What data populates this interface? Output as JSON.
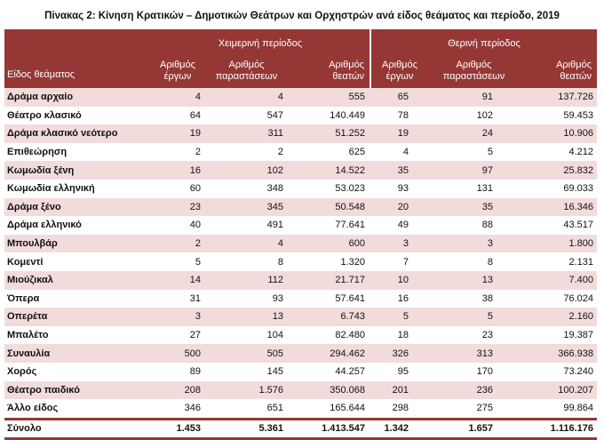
{
  "title": "Πίνακας 2: Κίνηση Κρατικών – Δημοτικών Θεάτρων και Ορχηστρών ανά είδος θεάματος και περίοδο, 2019",
  "header": {
    "category": "Είδος θεάματος",
    "groups": [
      "Χειμερινή περίοδος",
      "Θερινή περίοδος"
    ],
    "columns": [
      [
        "Αριθμός",
        "έργων"
      ],
      [
        "Αριθμός",
        "παραστάσεων"
      ],
      [
        "Αριθμός",
        "θεατών"
      ],
      [
        "Αριθμός",
        "έργων"
      ],
      [
        "Αριθμός",
        "παραστάσεων"
      ],
      [
        "Αριθμός",
        "θεατών"
      ]
    ]
  },
  "colors": {
    "header": "#953735",
    "shade": "#f2dcdb"
  },
  "rows": [
    [
      "Δράμα  αρχαίο",
      "4",
      "4",
      "555",
      "65",
      "91",
      "137.726"
    ],
    [
      "Θέατρο κλασικό",
      "64",
      "547",
      "140.449",
      "78",
      "102",
      "59.453"
    ],
    [
      "Δράμα κλασικό νεότερο",
      "19",
      "311",
      "51.252",
      "19",
      "24",
      "10.906"
    ],
    [
      "Επιθεώρηση",
      "2",
      "2",
      "625",
      "4",
      "5",
      "4.212"
    ],
    [
      "Κωμωδία ξένη",
      "16",
      "102",
      "14.522",
      "35",
      "97",
      "25.832"
    ],
    [
      "Κωμωδία ελληνική",
      "60",
      "348",
      "53.023",
      "93",
      "131",
      "69.033"
    ],
    [
      "Δράμα ξένο",
      "23",
      "345",
      "50.548",
      "20",
      "35",
      "16.346"
    ],
    [
      "Δράμα ελληνικό",
      "40",
      "491",
      "77.641",
      "49",
      "88",
      "43.517"
    ],
    [
      "Μπουλβάρ",
      "2",
      "4",
      "600",
      "3",
      "3",
      "1.800"
    ],
    [
      "Κομεντί",
      "5",
      "8",
      "1.320",
      "7",
      "8",
      "2.131"
    ],
    [
      "Μιούζικαλ",
      "14",
      "112",
      "21.717",
      "10",
      "13",
      "7.400"
    ],
    [
      "Όπερα",
      "31",
      "93",
      "57.641",
      "16",
      "38",
      "76.024"
    ],
    [
      "Οπερέτα",
      "3",
      "13",
      "6.743",
      "5",
      "5",
      "2.160"
    ],
    [
      "Μπαλέτο",
      "27",
      "104",
      "82.480",
      "18",
      "23",
      "19.387"
    ],
    [
      "Συναυλία",
      "500",
      "505",
      "294.462",
      "326",
      "313",
      "366.938"
    ],
    [
      "Χορός",
      "89",
      "145",
      "44.257",
      "95",
      "170",
      "73.240"
    ],
    [
      "Θέατρο παιδικό",
      "208",
      "1.576",
      "350.068",
      "201",
      "236",
      "100.207"
    ],
    [
      "Άλλο είδος",
      "346",
      "651",
      "165.644",
      "298",
      "275",
      "99.864"
    ]
  ],
  "total": [
    "Σύνολο",
    "1.453",
    "5.361",
    "1.413.547",
    "1.342",
    "1.657",
    "1.116.176"
  ]
}
